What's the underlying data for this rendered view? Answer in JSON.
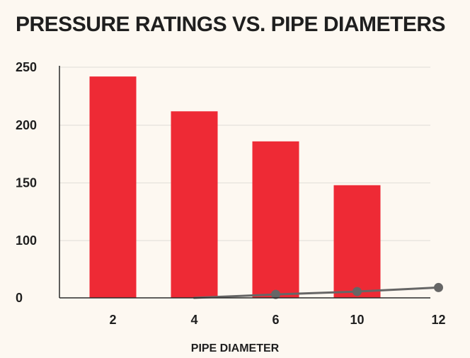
{
  "chart_data": {
    "type": "bar",
    "title": "PRESSURE RATINGS VS. PIPE DIAMETERS",
    "xlabel": "PIPE DIAMETER",
    "ylabel": "",
    "categories": [
      "2",
      "4",
      "6",
      "10",
      "12"
    ],
    "series": [
      {
        "type": "bar",
        "values": [
          242,
          212,
          186,
          148,
          null
        ]
      },
      {
        "type": "line",
        "values": [
          null,
          0,
          6,
          11,
          18
        ]
      }
    ],
    "yticks": [
      0,
      100,
      150,
      200,
      250
    ],
    "ylim": [
      0,
      250
    ],
    "grid": true,
    "legend": "none",
    "colors": {
      "bar": "#ee2a35",
      "line": "#666666",
      "grid": "#e6e2dc",
      "text": "#1f1f1f",
      "background": "#fdf8f1"
    }
  }
}
